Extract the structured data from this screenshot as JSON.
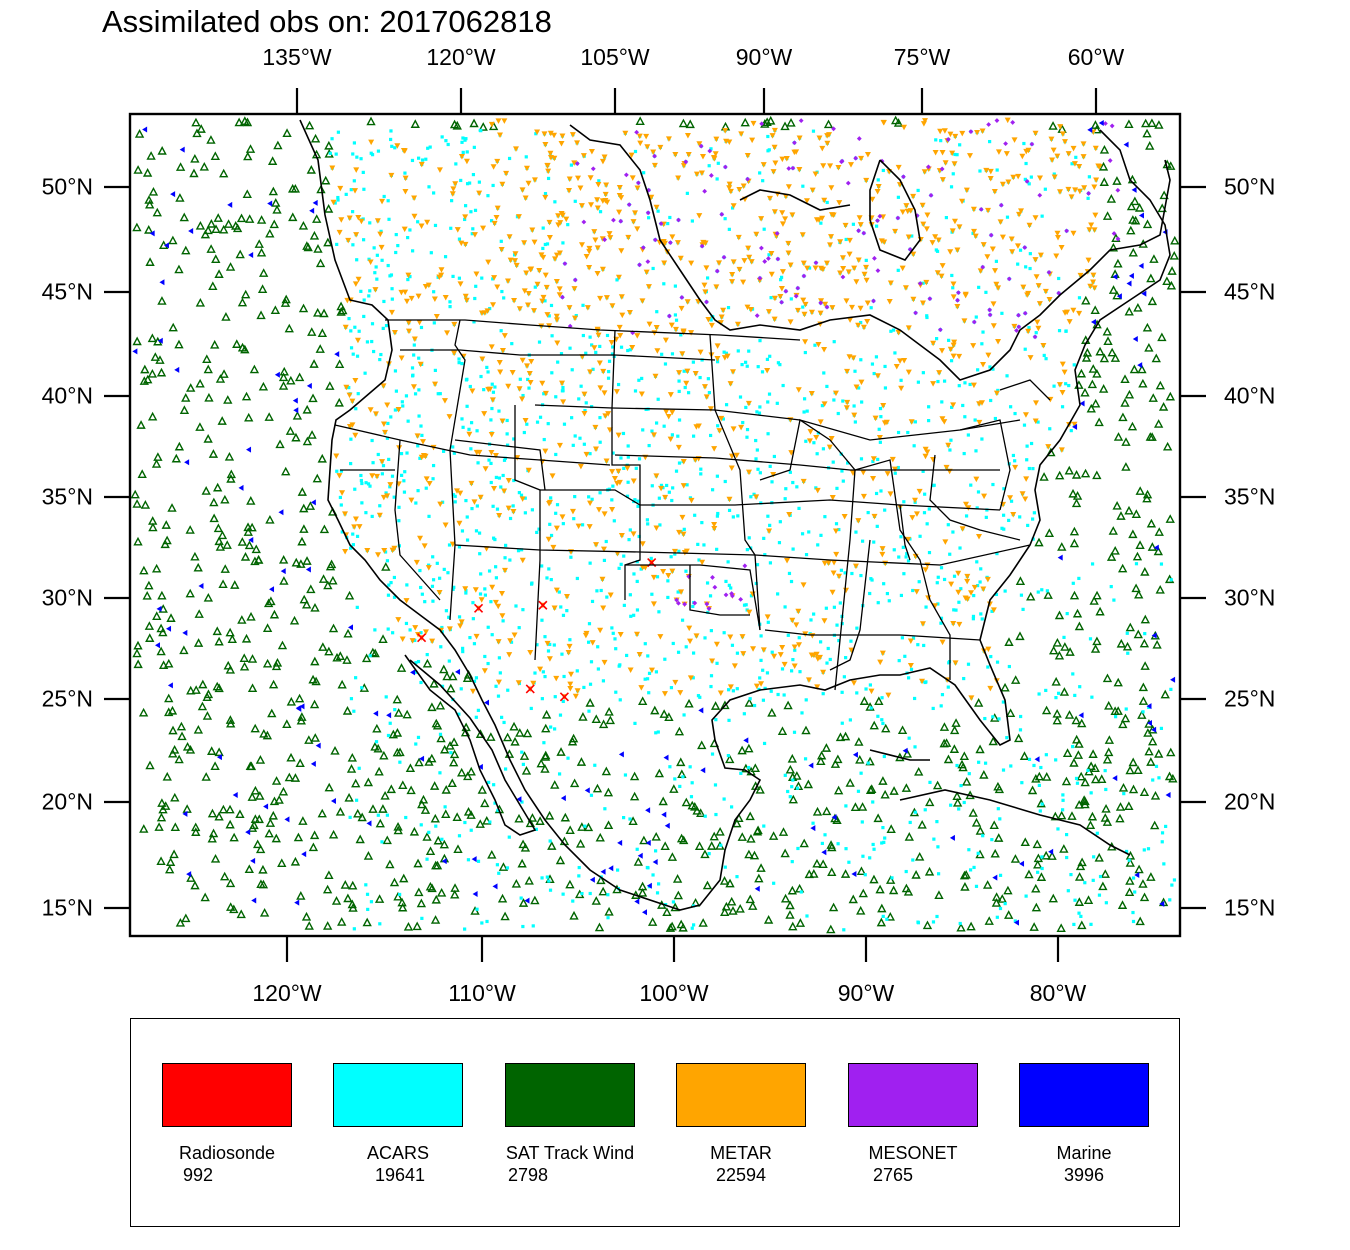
{
  "title": "Assimilated obs on: 2017062818",
  "axes": {
    "top_lon_ticks": [
      "135°W",
      "120°W",
      "105°W",
      "90°W",
      "75°W",
      "60°W"
    ],
    "bottom_lon_ticks": [
      "120°W",
      "110°W",
      "100°W",
      "90°W",
      "80°W"
    ],
    "lat_ticks": [
      "50°N",
      "45°N",
      "40°N",
      "35°N",
      "30°N",
      "25°N",
      "20°N",
      "15°N"
    ]
  },
  "legend": [
    {
      "name": "Radiosonde",
      "count": "992",
      "color": "#ff0000"
    },
    {
      "name": "ACARS",
      "count": "19641",
      "color": "#00ffff"
    },
    {
      "name": "SAT Track Wind",
      "count": "2798",
      "color": "#006400"
    },
    {
      "name": "METAR",
      "count": "22594",
      "color": "#ffa500"
    },
    {
      "name": "MESONET",
      "count": "2765",
      "color": "#a020f0"
    },
    {
      "name": "Marine",
      "count": "3996",
      "color": "#0000ff"
    }
  ]
}
